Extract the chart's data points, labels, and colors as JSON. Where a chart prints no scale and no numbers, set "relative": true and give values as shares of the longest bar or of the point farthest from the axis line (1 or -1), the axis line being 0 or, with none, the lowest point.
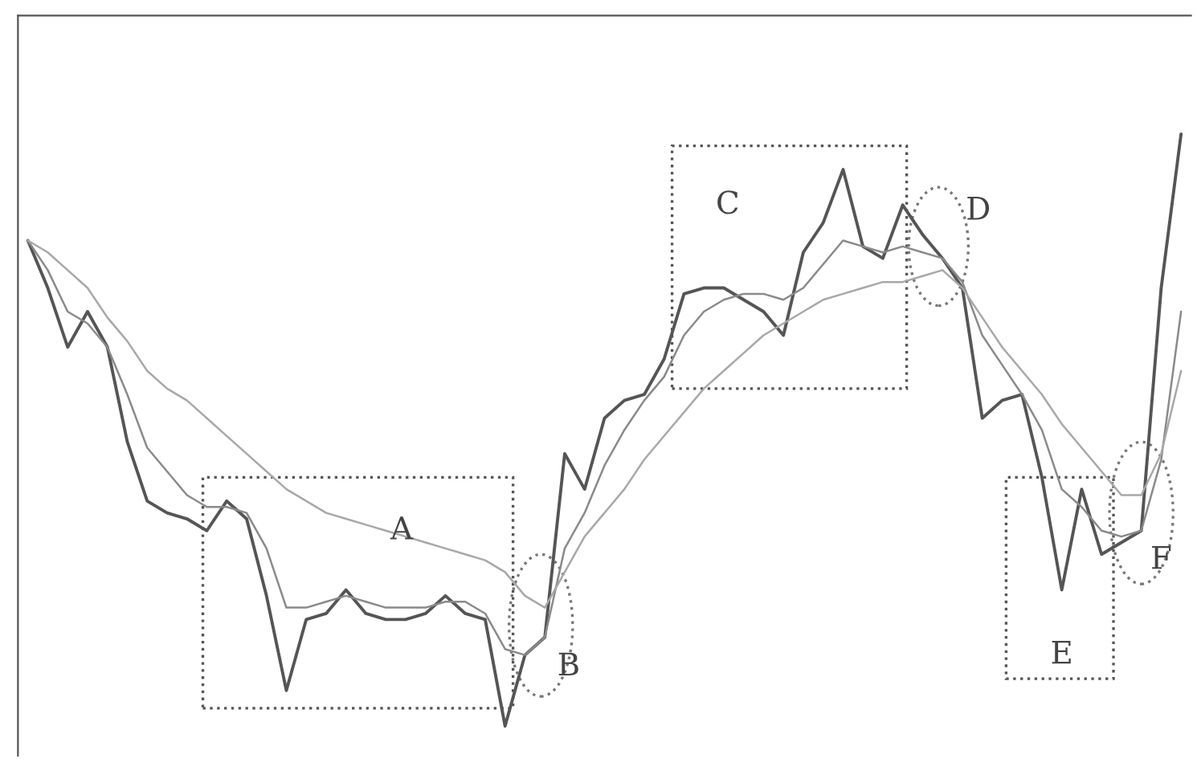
{
  "chart_data": {
    "type": "line",
    "relative": true,
    "categories": [
      null,
      null,
      null,
      null,
      null,
      null,
      null,
      null,
      null,
      null,
      null,
      null,
      null,
      null,
      null,
      null,
      null,
      null,
      null,
      null,
      null,
      null,
      null,
      null,
      null,
      null,
      null,
      null,
      null,
      null,
      null,
      null,
      null,
      null,
      null,
      null,
      null,
      null,
      null,
      null,
      null,
      null,
      null,
      null,
      null,
      null,
      null,
      null,
      null,
      null,
      null,
      null,
      null,
      null,
      null,
      null,
      null,
      null,
      null
    ],
    "series": [
      {
        "color": "#555555",
        "values": [
          0.82,
          0.74,
          0.64,
          0.7,
          0.64,
          0.48,
          0.38,
          0.36,
          0.35,
          0.33,
          0.38,
          0.35,
          0.22,
          0.06,
          0.18,
          0.19,
          0.23,
          0.19,
          0.18,
          0.18,
          0.19,
          0.22,
          0.19,
          0.18,
          0,
          0.12,
          0.15,
          0.46,
          0.4,
          0.52,
          0.55,
          0.56,
          0.62,
          0.73,
          0.74,
          0.74,
          0.72,
          0.7,
          0.66,
          0.8,
          0.85,
          0.94,
          0.81,
          0.79,
          0.88,
          0.83,
          0.79,
          0.74,
          0.52,
          0.55,
          0.56,
          0.42,
          0.23,
          0.4,
          0.29,
          0.31,
          0.33,
          0.74,
          1
        ]
      },
      {
        "color": "#8a8a8a",
        "values": [
          0.82,
          0.77,
          0.7,
          0.68,
          0.64,
          0.56,
          0.47,
          0.43,
          0.39,
          0.37,
          0.37,
          0.36,
          0.3,
          0.2,
          0.2,
          0.21,
          0.22,
          0.21,
          0.2,
          0.2,
          0.2,
          0.21,
          0.21,
          0.19,
          0.13,
          0.12,
          0.15,
          0.3,
          0.36,
          0.44,
          0.5,
          0.55,
          0.59,
          0.66,
          0.7,
          0.72,
          0.73,
          0.73,
          0.72,
          0.74,
          0.78,
          0.82,
          0.81,
          0.8,
          0.81,
          0.8,
          0.79,
          0.75,
          0.66,
          0.61,
          0.56,
          0.5,
          0.4,
          0.37,
          0.33,
          0.32,
          0.33,
          0.45,
          0.7
        ]
      },
      {
        "color": "#a8a8a8",
        "values": [
          0.82,
          0.8,
          0.77,
          0.74,
          0.69,
          0.65,
          0.6,
          0.57,
          0.55,
          0.52,
          0.49,
          0.46,
          0.43,
          0.4,
          0.38,
          0.36,
          0.35,
          0.34,
          0.33,
          0.32,
          0.31,
          0.3,
          0.29,
          0.28,
          0.26,
          0.22,
          0.2,
          0.26,
          0.32,
          0.36,
          0.4,
          0.45,
          0.49,
          0.53,
          0.57,
          0.6,
          0.63,
          0.66,
          0.68,
          0.7,
          0.72,
          0.73,
          0.74,
          0.75,
          0.75,
          0.76,
          0.77,
          0.74,
          0.69,
          0.64,
          0.6,
          0.56,
          0.51,
          0.47,
          0.43,
          0.39,
          0.39,
          0.46,
          0.6
        ]
      }
    ],
    "annotations": [
      "A",
      "B",
      "C",
      "D",
      "E",
      "F"
    ],
    "grid": false,
    "legend": false
  }
}
